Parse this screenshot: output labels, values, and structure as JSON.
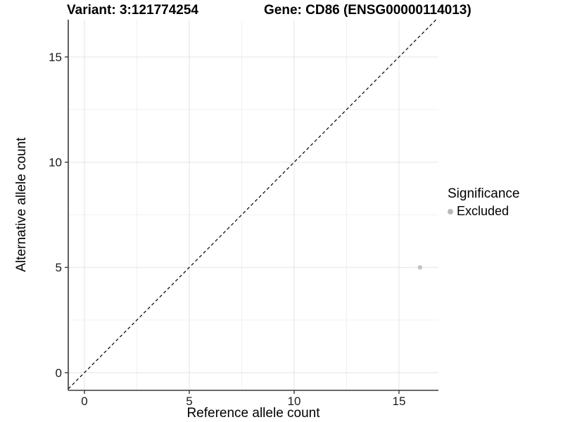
{
  "header": {
    "variant_label": "Variant: 3:121774254",
    "gene_label": "Gene: CD86 (ENSG00000114013)"
  },
  "chart_data": {
    "type": "scatter",
    "title": "Variant: 3:121774254        Gene: CD86 (ENSG00000114013)",
    "xlabel": "Reference allele count",
    "ylabel": "Alternative allele count",
    "xlim": [
      -0.77,
      16.88
    ],
    "ylim": [
      -0.84,
      16.77
    ],
    "x_ticks": [
      0,
      5,
      10,
      15
    ],
    "y_ticks": [
      0,
      5,
      10,
      15
    ],
    "x_minor_ticks": [
      2.5,
      7.5,
      12.5
    ],
    "y_minor_ticks": [
      2.5,
      7.5,
      12.5
    ],
    "grid": "major+minor on white background",
    "identity_line": {
      "slope": 1,
      "intercept": 0,
      "style": "dashed",
      "color": "#000000"
    },
    "series": [
      {
        "name": "Excluded",
        "color": "#c3c3c3",
        "points": [
          {
            "x": 16,
            "y": 5
          }
        ]
      }
    ],
    "legend": {
      "title": "Significance",
      "position": "right",
      "items": [
        {
          "label": "Excluded",
          "color": "#b9b9b9"
        }
      ]
    }
  },
  "colors": {
    "background": "#ffffff",
    "grid_major": "#e4e4e4",
    "grid_minor": "#f1f1f1",
    "axis_line": "#383838",
    "tick_text": "#1a1a1a",
    "title_text": "#000000",
    "identity_line": "#000000",
    "point_fill": "#c3c3c3"
  }
}
